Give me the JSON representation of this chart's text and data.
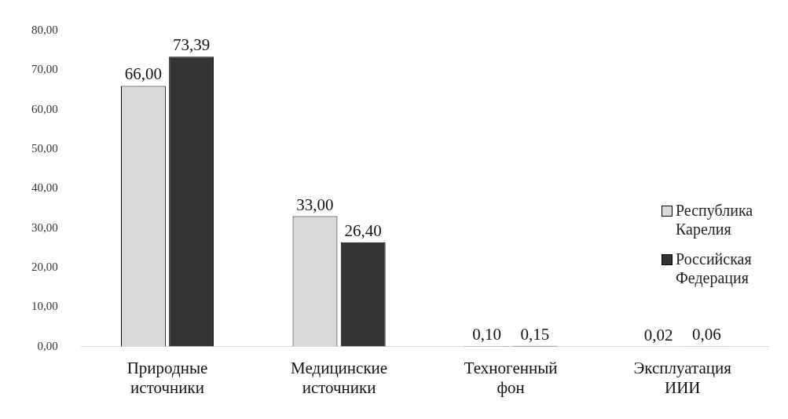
{
  "chart_data": {
    "type": "bar",
    "categories": [
      "Природные источники",
      "Медицинские источники",
      "Техногенный фон",
      "Эксплуатация ИИИ"
    ],
    "series": [
      {
        "name": "Республика Карелия",
        "color": "#d9d9d9",
        "values": [
          66.0,
          33.0,
          0.1,
          0.02
        ],
        "value_labels": [
          "66,00",
          "33,00",
          "0,10",
          "0,02"
        ]
      },
      {
        "name": "Российская Федерация",
        "color": "#333333",
        "values": [
          73.39,
          26.4,
          0.15,
          0.06
        ],
        "value_labels": [
          "73,39",
          "26,40",
          "0,15",
          "0,06"
        ]
      }
    ],
    "ylim": [
      0,
      80
    ],
    "yticks": [
      {
        "value": 0,
        "label": "0,00"
      },
      {
        "value": 10,
        "label": "10,00"
      },
      {
        "value": 20,
        "label": "20,00"
      },
      {
        "value": 30,
        "label": "30,00"
      },
      {
        "value": 40,
        "label": "40,00"
      },
      {
        "value": 50,
        "label": "50,00"
      },
      {
        "value": 60,
        "label": "60,00"
      },
      {
        "value": 70,
        "label": "70,00"
      },
      {
        "value": 80,
        "label": "80,00"
      }
    ],
    "grid": false,
    "legend": "right"
  }
}
